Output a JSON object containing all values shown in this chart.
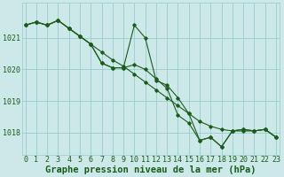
{
  "hours": [
    0,
    1,
    2,
    3,
    4,
    5,
    6,
    7,
    8,
    9,
    10,
    11,
    12,
    13,
    14,
    15,
    16,
    17,
    18,
    19,
    20,
    21,
    22,
    23
  ],
  "line_smooth": [
    1021.4,
    1021.5,
    1021.4,
    1021.55,
    1021.3,
    1021.05,
    1020.8,
    1020.55,
    1020.3,
    1020.1,
    1019.85,
    1019.6,
    1019.35,
    1019.1,
    1018.85,
    1018.6,
    1018.35,
    1018.2,
    1018.1,
    1018.05,
    1018.05,
    1018.05,
    1018.1,
    1017.85
  ],
  "line_detail1": [
    1021.4,
    1021.5,
    1021.4,
    1021.55,
    1021.3,
    1021.05,
    1020.8,
    1020.2,
    1020.05,
    1020.05,
    1021.4,
    1021.0,
    1019.65,
    1019.5,
    1019.1,
    1018.6,
    1017.75,
    1017.85,
    1017.55,
    1018.05,
    1018.1,
    1018.05,
    1018.1,
    1017.85
  ],
  "line_detail2": [
    1021.4,
    1021.5,
    1021.4,
    1021.55,
    1021.3,
    1021.05,
    1020.8,
    1020.2,
    1020.05,
    1020.05,
    1020.15,
    1020.0,
    1019.7,
    1019.4,
    1018.55,
    1018.3,
    1017.75,
    1017.85,
    1017.55,
    1018.05,
    1018.1,
    1018.05,
    1018.1,
    1017.85
  ],
  "bg_color": "#cce8e8",
  "line_color": "#1a5c1a",
  "grid_color": "#99cccc",
  "text_color": "#1a5c1a",
  "xlabel": "Graphe pression niveau de la mer (hPa)",
  "ylim": [
    1017.3,
    1022.1
  ],
  "yticks": [
    1018,
    1019,
    1020,
    1021
  ],
  "figsize": [
    3.2,
    2.0
  ],
  "dpi": 100,
  "tick_fontsize": 6,
  "label_fontsize": 7.5
}
